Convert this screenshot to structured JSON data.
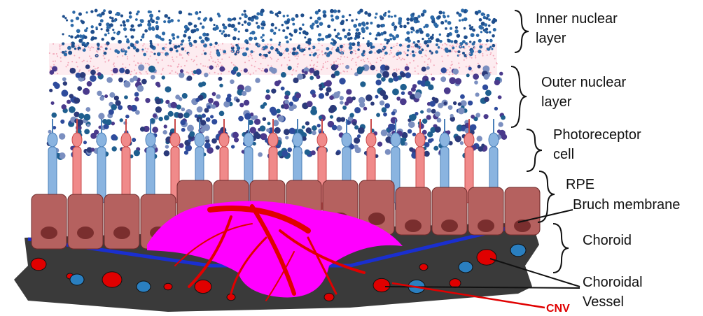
{
  "labels": [
    {
      "lines": [
        "Inner nuclear",
        "layer"
      ]
    },
    {
      "lines": [
        "Outer nuclear",
        "layer"
      ]
    },
    {
      "lines": [
        "Photoreceptor",
        "cell"
      ]
    },
    {
      "lines": [
        "RPE"
      ]
    },
    {
      "lines": [
        "Bruch membrane"
      ]
    },
    {
      "lines": [
        "Choroid"
      ]
    },
    {
      "lines": [
        "Choroidal",
        "Vessel"
      ]
    },
    {
      "lines": [
        "CNV"
      ]
    }
  ]
}
